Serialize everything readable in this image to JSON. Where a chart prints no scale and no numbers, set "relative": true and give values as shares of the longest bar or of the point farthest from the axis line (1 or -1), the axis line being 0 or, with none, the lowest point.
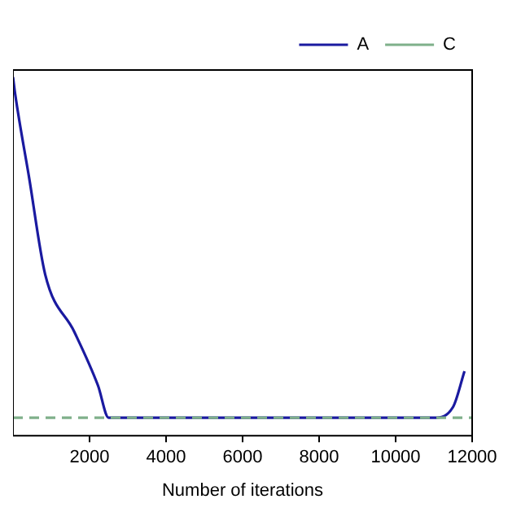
{
  "chart_data": {
    "type": "line",
    "xlabel": "Number of iterations",
    "relative": true,
    "xlim": [
      0,
      12000
    ],
    "xticks": [
      2000,
      4000,
      6000,
      8000,
      10000,
      12000
    ],
    "legend": "top right",
    "grid": false,
    "marker": "none",
    "series": [
      {
        "name": "A",
        "color": "#1a1aa0",
        "line_style": "solid",
        "x": [
          0,
          60,
          420,
          840,
          1600,
          2220,
          2500,
          11000,
          11500,
          11800
        ],
        "values": [
          1.0,
          0.95,
          0.72,
          0.45,
          0.29,
          0.14,
          0.05,
          0.05,
          0.08,
          0.18
        ]
      },
      {
        "name": "C",
        "color": "#7fb08a",
        "line_style": "dashed",
        "x": [
          0,
          12000
        ],
        "values": [
          0.05,
          0.05
        ]
      }
    ]
  }
}
